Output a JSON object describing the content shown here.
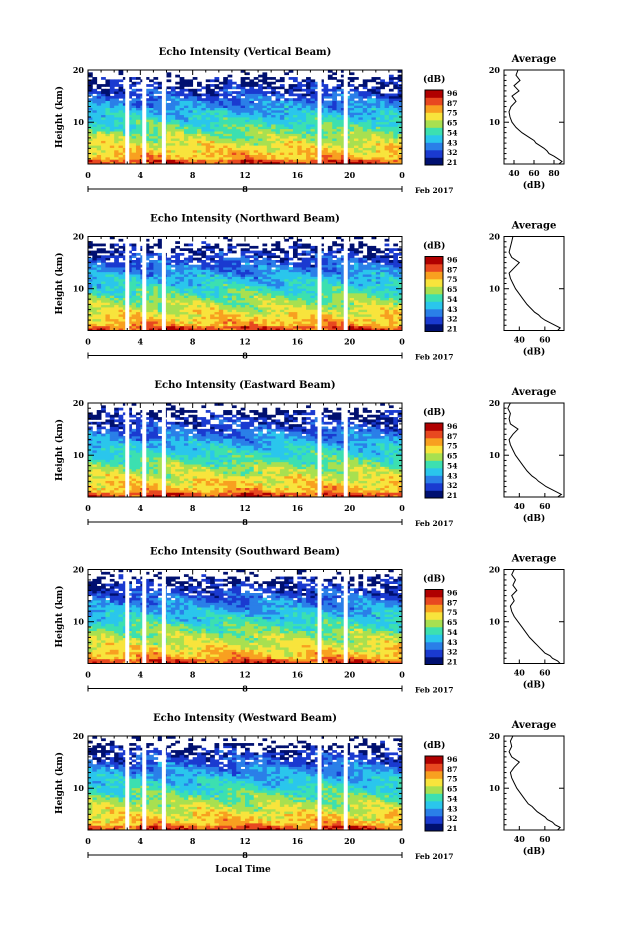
{
  "chart_data": {
    "type": "heatmap",
    "x_axis_label": "Local Time",
    "y_axis_label": "Height (km)",
    "time_ticks": [
      "0",
      "4",
      "8",
      "12",
      "16",
      "20",
      "0"
    ],
    "date_label": "8",
    "month_year_label": "Feb 2017",
    "height_ticks": [
      "20",
      "10"
    ],
    "height_range_km": [
      2,
      20
    ],
    "time_range_hours": [
      0,
      24
    ],
    "colorbar": {
      "unit": "(dB)",
      "tick_labels": [
        "96",
        "87",
        "75",
        "65",
        "54",
        "43",
        "32",
        "21"
      ],
      "colors": [
        "#001070",
        "#1a3ad0",
        "#2a7fe8",
        "#2ac6ec",
        "#3ce0b0",
        "#a8e050",
        "#f8e43c",
        "#f8a020",
        "#e84820",
        "#b00000"
      ]
    },
    "panels": [
      {
        "title": "Echo Intensity (Vertical Beam)",
        "average_title": "Average",
        "average_xlabel": "(dB)",
        "average_x_ticks": [
          "40",
          "60",
          "80"
        ],
        "average_x_range": [
          30,
          90
        ],
        "average_profile": [
          [
            2,
            85
          ],
          [
            2.5,
            88
          ],
          [
            3,
            84
          ],
          [
            3.5,
            80
          ],
          [
            4,
            75
          ],
          [
            4.5,
            73
          ],
          [
            5,
            70
          ],
          [
            5.5,
            66
          ],
          [
            6,
            62
          ],
          [
            6.5,
            60
          ],
          [
            7,
            56
          ],
          [
            7.5,
            52
          ],
          [
            8,
            48
          ],
          [
            8.5,
            45
          ],
          [
            9,
            42
          ],
          [
            10,
            38
          ],
          [
            11,
            36
          ],
          [
            12,
            35
          ],
          [
            13,
            37
          ],
          [
            14,
            42
          ],
          [
            15,
            38
          ],
          [
            16,
            45
          ],
          [
            17,
            40
          ],
          [
            18,
            46
          ],
          [
            19,
            42
          ],
          [
            20,
            44
          ]
        ]
      },
      {
        "title": "Echo Intensity (Northward Beam)",
        "average_title": "Average",
        "average_xlabel": "(dB)",
        "average_x_ticks": [
          "40",
          "60"
        ],
        "average_x_range": [
          28,
          75
        ],
        "average_profile": [
          [
            2,
            70
          ],
          [
            2.5,
            72
          ],
          [
            3,
            68
          ],
          [
            3.5,
            64
          ],
          [
            4,
            60
          ],
          [
            4.5,
            57
          ],
          [
            5,
            55
          ],
          [
            5.5,
            52
          ],
          [
            6,
            50
          ],
          [
            6.5,
            48
          ],
          [
            7,
            46
          ],
          [
            8,
            43
          ],
          [
            9,
            40
          ],
          [
            10,
            37
          ],
          [
            11,
            35
          ],
          [
            12,
            33
          ],
          [
            13,
            32
          ],
          [
            14,
            36
          ],
          [
            15,
            40
          ],
          [
            16,
            34
          ],
          [
            17,
            32
          ],
          [
            18,
            33
          ],
          [
            19,
            34
          ],
          [
            20,
            35
          ]
        ]
      },
      {
        "title": "Echo Intensity (Eastward Beam)",
        "average_title": "Average",
        "average_xlabel": "(dB)",
        "average_x_ticks": [
          "40",
          "60"
        ],
        "average_x_range": [
          28,
          75
        ],
        "average_profile": [
          [
            2,
            70
          ],
          [
            2.5,
            73
          ],
          [
            3,
            69
          ],
          [
            3.5,
            65
          ],
          [
            4,
            61
          ],
          [
            4.5,
            58
          ],
          [
            5,
            55
          ],
          [
            5.5,
            53
          ],
          [
            6,
            50
          ],
          [
            6.5,
            48
          ],
          [
            7,
            46
          ],
          [
            8,
            43
          ],
          [
            9,
            40
          ],
          [
            10,
            37
          ],
          [
            11,
            35
          ],
          [
            12,
            33
          ],
          [
            13,
            32
          ],
          [
            14,
            35
          ],
          [
            15,
            39
          ],
          [
            16,
            33
          ],
          [
            17,
            32
          ],
          [
            18,
            33
          ],
          [
            19,
            31
          ],
          [
            20,
            33
          ]
        ]
      },
      {
        "title": "Echo Intensity (Southward Beam)",
        "average_title": "Average",
        "average_xlabel": "(dB)",
        "average_x_ticks": [
          "40",
          "60"
        ],
        "average_x_range": [
          28,
          75
        ],
        "average_profile": [
          [
            2,
            72
          ],
          [
            2.5,
            70
          ],
          [
            3,
            66
          ],
          [
            3.5,
            64
          ],
          [
            4,
            60
          ],
          [
            4.5,
            58
          ],
          [
            5,
            56
          ],
          [
            5.5,
            54
          ],
          [
            6,
            52
          ],
          [
            6.5,
            50
          ],
          [
            7,
            48
          ],
          [
            8,
            45
          ],
          [
            9,
            42
          ],
          [
            10,
            39
          ],
          [
            11,
            36
          ],
          [
            12,
            34
          ],
          [
            13,
            33
          ],
          [
            14,
            36
          ],
          [
            15,
            34
          ],
          [
            16,
            38
          ],
          [
            17,
            35
          ],
          [
            18,
            37
          ],
          [
            19,
            34
          ],
          [
            20,
            36
          ]
        ]
      },
      {
        "title": "Echo Intensity (Westward Beam)",
        "average_title": "Average",
        "average_xlabel": "(dB)",
        "average_x_ticks": [
          "40",
          "60"
        ],
        "average_x_range": [
          28,
          75
        ],
        "average_profile": [
          [
            2,
            70
          ],
          [
            2.5,
            72
          ],
          [
            3,
            68
          ],
          [
            3.5,
            66
          ],
          [
            4,
            62
          ],
          [
            4.5,
            60
          ],
          [
            5,
            57
          ],
          [
            5.5,
            54
          ],
          [
            6,
            52
          ],
          [
            6.5,
            50
          ],
          [
            7,
            47
          ],
          [
            8,
            44
          ],
          [
            9,
            41
          ],
          [
            10,
            38
          ],
          [
            11,
            36
          ],
          [
            12,
            34
          ],
          [
            13,
            33
          ],
          [
            14,
            36
          ],
          [
            15,
            40
          ],
          [
            16,
            34
          ],
          [
            17,
            32
          ],
          [
            18,
            34
          ],
          [
            19,
            33
          ],
          [
            20,
            35
          ]
        ]
      }
    ]
  }
}
